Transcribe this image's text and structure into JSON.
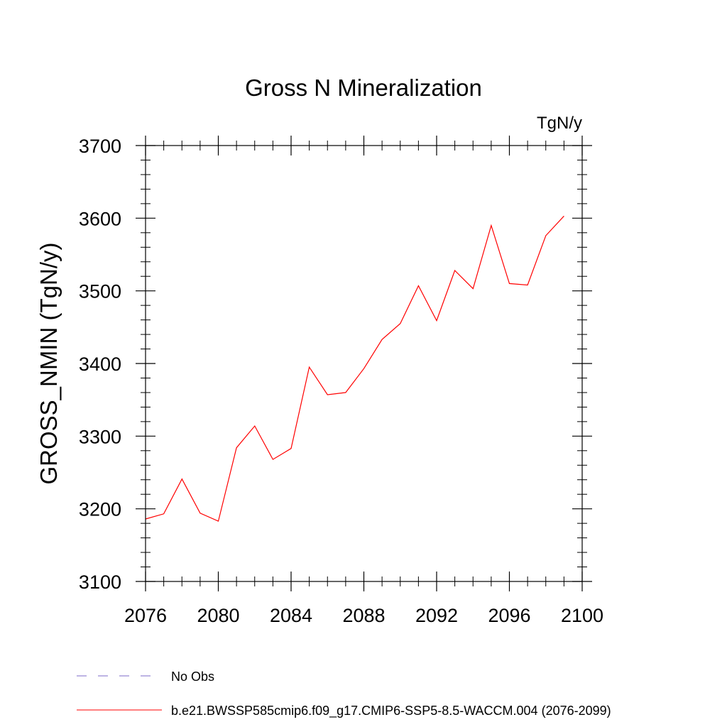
{
  "chart_data": {
    "type": "line",
    "title": "Gross N Mineralization",
    "units_label": "TgN/y",
    "ylabel": "GROSS_NMIN  (TgN/y)",
    "xlabel": "",
    "xlim": [
      2076,
      2100
    ],
    "ylim": [
      3100,
      3700
    ],
    "x_major_ticks": [
      2076,
      2080,
      2084,
      2088,
      2092,
      2096,
      2100
    ],
    "x_minor_step": 1,
    "y_major_ticks": [
      3100,
      3200,
      3300,
      3400,
      3500,
      3600,
      3700
    ],
    "y_minor_step": 20,
    "x": [
      2076,
      2077,
      2078,
      2079,
      2080,
      2081,
      2082,
      2083,
      2084,
      2085,
      2086,
      2087,
      2088,
      2089,
      2090,
      2091,
      2092,
      2093,
      2094,
      2095,
      2096,
      2097,
      2098,
      2099
    ],
    "series": [
      {
        "name": "b.e21.BWSSP585cmip6.f09_g17.CMIP6-SSP5-8.5-WACCM.004 (2076-2099)",
        "color": "#ff0000",
        "line_style": "solid",
        "values": [
          3186,
          3193,
          3241,
          3194,
          3183,
          3284,
          3314,
          3268,
          3283,
          3395,
          3357,
          3360,
          3393,
          3433,
          3455,
          3507,
          3459,
          3528,
          3503,
          3590,
          3510,
          3508,
          3576,
          3603
        ]
      }
    ],
    "legend": [
      {
        "label": "No Obs",
        "color": "#7b68c8",
        "line_style": "dashed"
      },
      {
        "label": "b.e21.BWSSP585cmip6.f09_g17.CMIP6-SSP5-8.5-WACCM.004 (2076-2099)",
        "color": "#ff0000",
        "line_style": "solid"
      }
    ],
    "legend_position": "bottom-left"
  }
}
